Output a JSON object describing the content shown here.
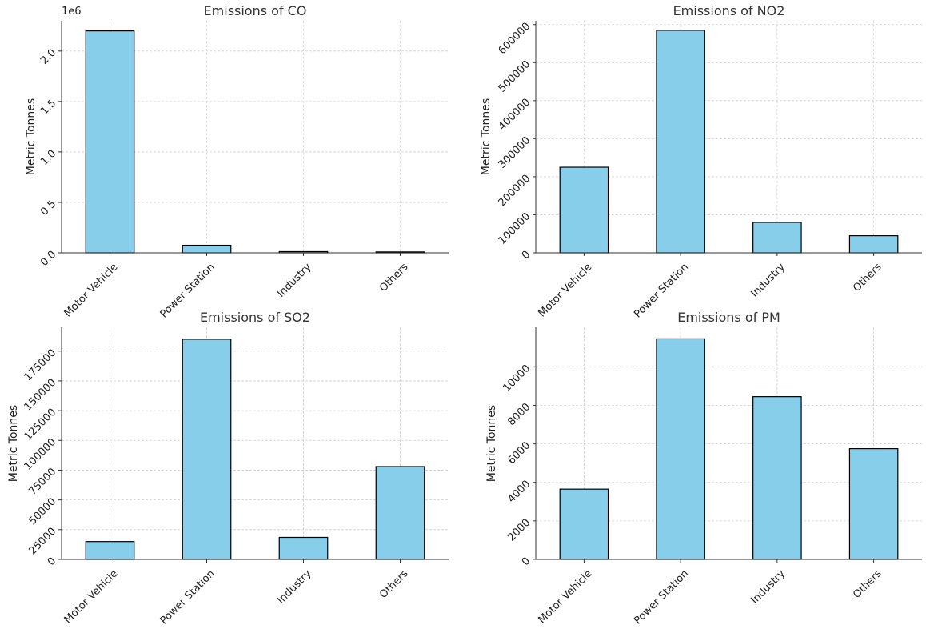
{
  "chart_data": [
    {
      "type": "bar",
      "title": "Emissions of CO",
      "xlabel": "",
      "ylabel": "Metric Tonnes",
      "categories": [
        "Motor Vehicle",
        "Power Station",
        "Industry",
        "Others"
      ],
      "values": [
        2200000,
        75000,
        12000,
        9000
      ],
      "ylim": [
        0,
        2300000
      ],
      "yticks": [
        0,
        500000,
        1000000,
        1500000,
        2000000
      ],
      "ytick_labels": [
        "0.0",
        "0.5",
        "1.0",
        "1.5",
        "2.0"
      ],
      "offset_label": "1e6",
      "grid": true,
      "color": "#87ceeb"
    },
    {
      "type": "bar",
      "title": "Emissions of NO2",
      "xlabel": "",
      "ylabel": "Metric Tonnes",
      "categories": [
        "Motor Vehicle",
        "Power Station",
        "Industry",
        "Others"
      ],
      "values": [
        225000,
        585000,
        80000,
        45000
      ],
      "ylim": [
        0,
        610000
      ],
      "yticks": [
        0,
        100000,
        200000,
        300000,
        400000,
        500000,
        600000
      ],
      "ytick_labels": [
        "0",
        "100000",
        "200000",
        "300000",
        "400000",
        "500000",
        "600000"
      ],
      "grid": true,
      "color": "#87ceeb"
    },
    {
      "type": "bar",
      "title": "Emissions of SO2",
      "xlabel": "",
      "ylabel": "Metric Tonnes",
      "categories": [
        "Motor Vehicle",
        "Power Station",
        "Industry",
        "Others"
      ],
      "values": [
        15000,
        185000,
        18500,
        78000
      ],
      "ylim": [
        0,
        195000
      ],
      "yticks": [
        0,
        25000,
        50000,
        75000,
        100000,
        125000,
        150000,
        175000
      ],
      "ytick_labels": [
        "0",
        "25000",
        "50000",
        "75000",
        "100000",
        "125000",
        "150000",
        "175000"
      ],
      "grid": true,
      "color": "#87ceeb"
    },
    {
      "type": "bar",
      "title": "Emissions of PM",
      "xlabel": "",
      "ylabel": "Metric Tonnes",
      "categories": [
        "Motor Vehicle",
        "Power Station",
        "Industry",
        "Others"
      ],
      "values": [
        3650,
        11450,
        8450,
        5750
      ],
      "ylim": [
        0,
        12050
      ],
      "yticks": [
        0,
        2000,
        4000,
        6000,
        8000,
        10000
      ],
      "ytick_labels": [
        "0",
        "2000",
        "4000",
        "6000",
        "8000",
        "10000"
      ],
      "grid": true,
      "color": "#87ceeb"
    }
  ]
}
